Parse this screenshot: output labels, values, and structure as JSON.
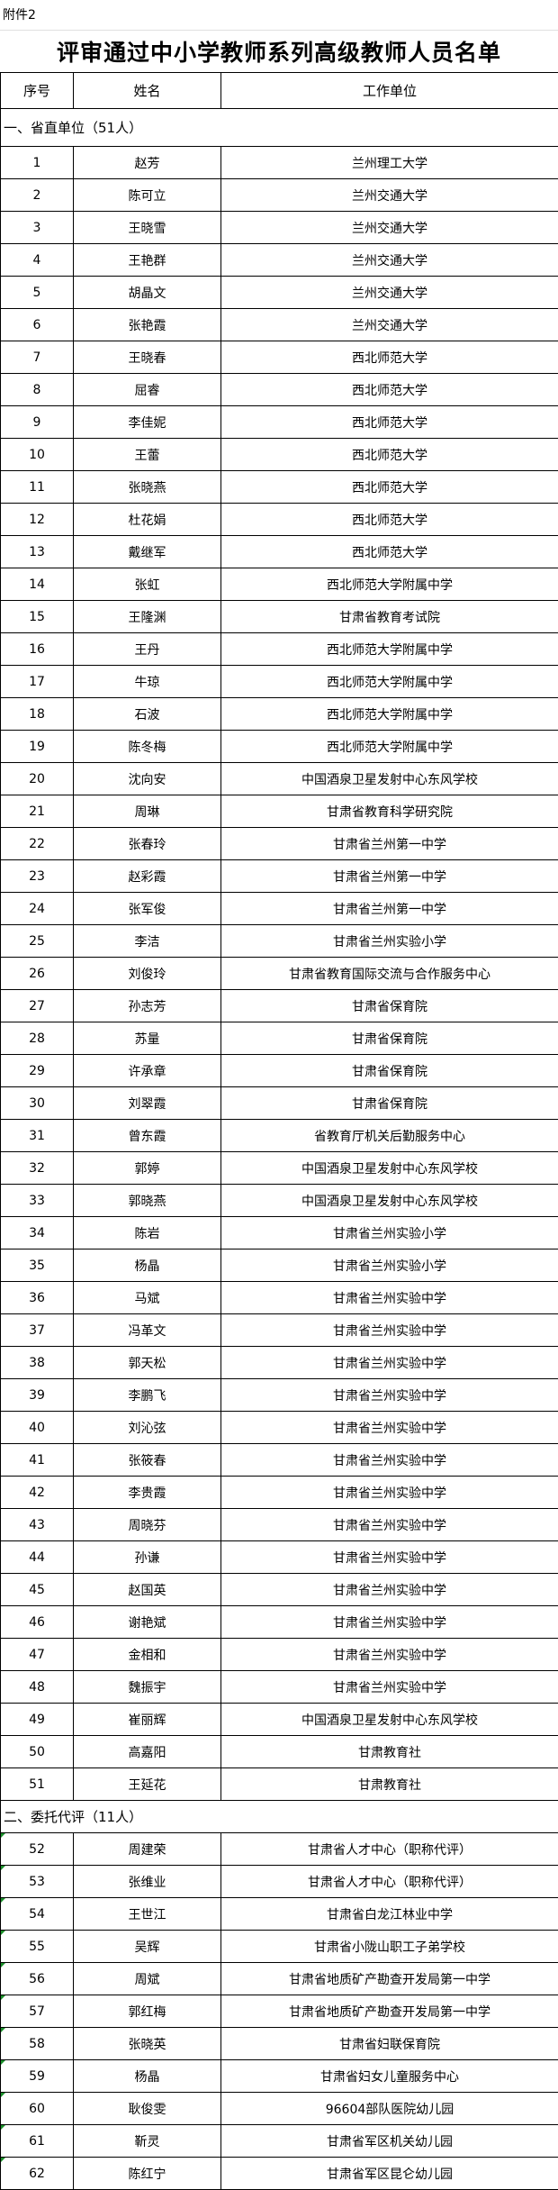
{
  "attachment_label": "附件2",
  "title": "评审通过中小学教师系列高级教师人员名单",
  "columns": [
    "序号",
    "姓名",
    "工作单位"
  ],
  "sections": [
    {
      "label": "一、省直单位（51人）",
      "rows": [
        [
          "1",
          "赵芳",
          "兰州理工大学"
        ],
        [
          "2",
          "陈可立",
          "兰州交通大学"
        ],
        [
          "3",
          "王晓雪",
          "兰州交通大学"
        ],
        [
          "4",
          "王艳群",
          "兰州交通大学"
        ],
        [
          "5",
          "胡晶文",
          "兰州交通大学"
        ],
        [
          "6",
          "张艳霞",
          "兰州交通大学"
        ],
        [
          "7",
          "王晓春",
          "西北师范大学"
        ],
        [
          "8",
          "屈睿",
          "西北师范大学"
        ],
        [
          "9",
          "李佳妮",
          "西北师范大学"
        ],
        [
          "10",
          "王蕾",
          "西北师范大学"
        ],
        [
          "11",
          "张晓燕",
          "西北师范大学"
        ],
        [
          "12",
          "杜花娟",
          "西北师范大学"
        ],
        [
          "13",
          "戴继军",
          "西北师范大学"
        ],
        [
          "14",
          "张虹",
          "西北师范大学附属中学"
        ],
        [
          "15",
          "王隆渊",
          "甘肃省教育考试院"
        ],
        [
          "16",
          "王丹",
          "西北师范大学附属中学"
        ],
        [
          "17",
          "牛琼",
          "西北师范大学附属中学"
        ],
        [
          "18",
          "石波",
          "西北师范大学附属中学"
        ],
        [
          "19",
          "陈冬梅",
          "西北师范大学附属中学"
        ],
        [
          "20",
          "沈向安",
          "中国酒泉卫星发射中心东风学校"
        ],
        [
          "21",
          "周琳",
          "甘肃省教育科学研究院"
        ],
        [
          "22",
          "张春玲",
          "甘肃省兰州第一中学"
        ],
        [
          "23",
          "赵彩霞",
          "甘肃省兰州第一中学"
        ],
        [
          "24",
          "张军俊",
          "甘肃省兰州第一中学"
        ],
        [
          "25",
          "李洁",
          "甘肃省兰州实验小学"
        ],
        [
          "26",
          "刘俊玲",
          "甘肃省教育国际交流与合作服务中心"
        ],
        [
          "27",
          "孙志芳",
          "甘肃省保育院"
        ],
        [
          "28",
          "苏量",
          "甘肃省保育院"
        ],
        [
          "29",
          "许承章",
          "甘肃省保育院"
        ],
        [
          "30",
          "刘翠霞",
          "甘肃省保育院"
        ],
        [
          "31",
          "曾东霞",
          "省教育厅机关后勤服务中心"
        ],
        [
          "32",
          "郭婷",
          "中国酒泉卫星发射中心东风学校"
        ],
        [
          "33",
          "郭晓燕",
          "中国酒泉卫星发射中心东风学校"
        ],
        [
          "34",
          "陈岩",
          "甘肃省兰州实验小学"
        ],
        [
          "35",
          "杨晶",
          "甘肃省兰州实验小学"
        ],
        [
          "36",
          "马斌",
          "甘肃省兰州实验中学"
        ],
        [
          "37",
          "冯革文",
          "甘肃省兰州实验中学"
        ],
        [
          "38",
          "郭天松",
          "甘肃省兰州实验中学"
        ],
        [
          "39",
          "李鹏飞",
          "甘肃省兰州实验中学"
        ],
        [
          "40",
          "刘沁弦",
          "甘肃省兰州实验中学"
        ],
        [
          "41",
          "张筱春",
          "甘肃省兰州实验中学"
        ],
        [
          "42",
          "李贵霞",
          "甘肃省兰州实验中学"
        ],
        [
          "43",
          "周晓芬",
          "甘肃省兰州实验中学"
        ],
        [
          "44",
          "孙谦",
          "甘肃省兰州实验中学"
        ],
        [
          "45",
          "赵国英",
          "甘肃省兰州实验中学"
        ],
        [
          "46",
          "谢艳斌",
          "甘肃省兰州实验中学"
        ],
        [
          "47",
          "金相和",
          "甘肃省兰州实验中学"
        ],
        [
          "48",
          "魏振宇",
          "甘肃省兰州实验中学"
        ],
        [
          "49",
          "崔丽辉",
          "中国酒泉卫星发射中心东风学校"
        ],
        [
          "50",
          "高嘉阳",
          "甘肃教育社"
        ],
        [
          "51",
          "王延花",
          "甘肃教育社"
        ]
      ]
    },
    {
      "label": "二、委托代评（11人）",
      "rows": [
        [
          "52",
          "周建荣",
          "甘肃省人才中心（职称代评）"
        ],
        [
          "53",
          "张维业",
          "甘肃省人才中心（职称代评）"
        ],
        [
          "54",
          "王世江",
          "甘肃省白龙江林业中学"
        ],
        [
          "55",
          "吴辉",
          "甘肃省小陇山职工子弟学校"
        ],
        [
          "56",
          "周斌",
          "甘肃省地质矿产勘查开发局第一中学"
        ],
        [
          "57",
          "郭红梅",
          "甘肃省地质矿产勘查开发局第一中学"
        ],
        [
          "58",
          "张晓英",
          "甘肃省妇联保育院"
        ],
        [
          "59",
          "杨晶",
          "甘肃省妇女儿童服务中心"
        ],
        [
          "60",
          "耿俊雯",
          "96604部队医院幼儿园"
        ],
        [
          "61",
          "靳灵",
          "甘肃省军区机关幼儿园"
        ],
        [
          "62",
          "陈红宁",
          "甘肃省军区昆仑幼儿园"
        ]
      ]
    }
  ],
  "colors": {
    "border": "#000000",
    "cell_flag": "#1a8f2a"
  }
}
